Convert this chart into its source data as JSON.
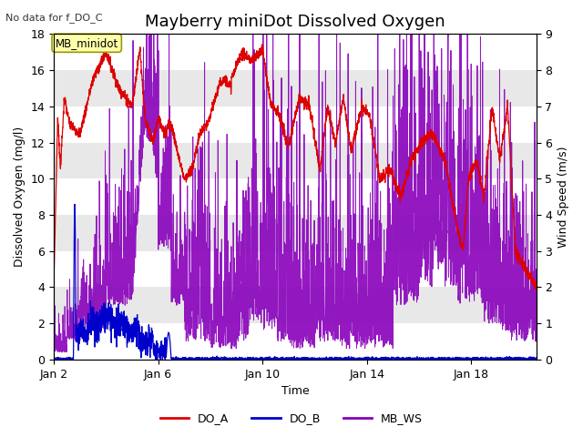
{
  "title": "Mayberry miniDot Dissolved Oxygen",
  "xlabel": "Time",
  "ylabel_left": "Dissolved Oxygen (mg/l)",
  "ylabel_right": "Wind Speed (m/s)",
  "annotation_topleft": "No data for f_DO_C",
  "box_label": "MB_minidot",
  "ylim_left": [
    0,
    18
  ],
  "ylim_right": [
    0.0,
    9.0
  ],
  "yticks_left": [
    0,
    2,
    4,
    6,
    8,
    10,
    12,
    14,
    16,
    18
  ],
  "yticks_right": [
    0.0,
    1.0,
    2.0,
    3.0,
    4.0,
    5.0,
    6.0,
    7.0,
    8.0,
    9.0
  ],
  "xtick_positions": [
    0,
    4,
    8,
    12,
    16
  ],
  "xtick_labels": [
    "Jan 2",
    "Jan 6",
    "Jan 10",
    "Jan 14",
    "Jan 18"
  ],
  "color_DO_A": "#dd0000",
  "color_DO_B": "#0000cc",
  "color_MB_WS": "#8800bb",
  "legend_labels": [
    "DO_A",
    "DO_B",
    "MB_WS"
  ],
  "gray_bands": [
    [
      14,
      16
    ],
    [
      10,
      12
    ],
    [
      6,
      8
    ],
    [
      2,
      4
    ]
  ],
  "gray_band_color": "#e8e8e8",
  "background_color": "#ffffff",
  "title_fontsize": 13,
  "label_fontsize": 9,
  "tick_fontsize": 9,
  "xlim": [
    0,
    18.5
  ]
}
